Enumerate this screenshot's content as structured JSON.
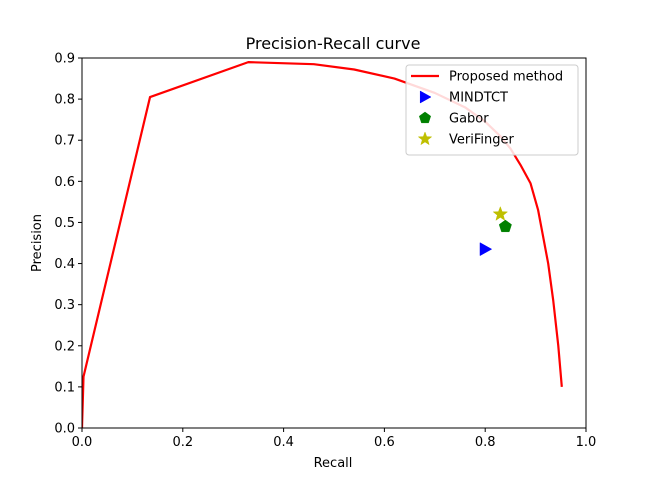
{
  "chart_data": {
    "type": "line",
    "title": "Precision-Recall curve",
    "xlabel": "Recall",
    "ylabel": "Precision",
    "xlim": [
      0,
      1.0
    ],
    "ylim": [
      0,
      0.9
    ],
    "xticks": [
      0.0,
      0.2,
      0.4,
      0.6,
      0.8,
      1.0
    ],
    "yticks": [
      0.0,
      0.1,
      0.2,
      0.3,
      0.4,
      0.5,
      0.6,
      0.7,
      0.8,
      0.9
    ],
    "xtick_labels": [
      "0.0",
      "0.2",
      "0.4",
      "0.6",
      "0.8",
      "1.0"
    ],
    "ytick_labels": [
      "0.0",
      "0.1",
      "0.2",
      "0.3",
      "0.4",
      "0.5",
      "0.6",
      "0.7",
      "0.8",
      "0.9"
    ],
    "grid": false,
    "legend_position": "top-right",
    "series": [
      {
        "name": "Proposed method",
        "kind": "line",
        "color": "#ff0000",
        "x": [
          0.0,
          0.003,
          0.135,
          0.33,
          0.46,
          0.54,
          0.62,
          0.7,
          0.76,
          0.8,
          0.83,
          0.85,
          0.87,
          0.89,
          0.905,
          0.915,
          0.925,
          0.935,
          0.945,
          0.952
        ],
        "y": [
          0.0,
          0.125,
          0.805,
          0.89,
          0.885,
          0.872,
          0.85,
          0.815,
          0.78,
          0.745,
          0.71,
          0.68,
          0.64,
          0.595,
          0.53,
          0.465,
          0.4,
          0.31,
          0.2,
          0.1
        ]
      },
      {
        "name": "MINDTCT",
        "kind": "marker",
        "marker": "triangle-right",
        "color": "#0000ff",
        "x": [
          0.8
        ],
        "y": [
          0.435
        ]
      },
      {
        "name": "Gabor",
        "kind": "marker",
        "marker": "pentagon",
        "color": "#008000",
        "x": [
          0.84
        ],
        "y": [
          0.49
        ]
      },
      {
        "name": "VeriFinger",
        "kind": "marker",
        "marker": "star",
        "color": "#bfbf00",
        "x": [
          0.83
        ],
        "y": [
          0.52
        ]
      }
    ]
  }
}
